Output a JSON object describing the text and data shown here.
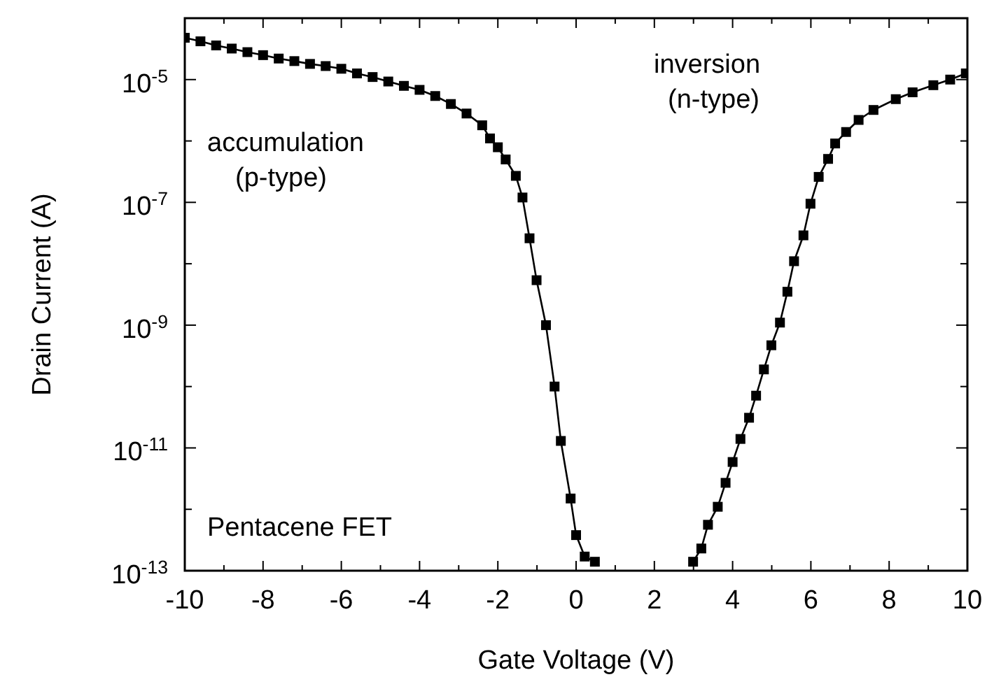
{
  "chart_data": {
    "type": "line",
    "xlabel": "Gate Voltage (V)",
    "ylabel": "Drain Current (A)",
    "annotations": [
      "accumulation\n(p-type)",
      "inversion\n(n-type)",
      "Pentacene FET"
    ],
    "log": "y",
    "marker": "square",
    "line_style": "solid",
    "grid": false,
    "xlim": [
      -10,
      10
    ],
    "ylim": [
      1e-13,
      0.0001
    ],
    "xticks": [
      -10,
      {
        "value": -9,
        "label": null
      },
      -8,
      {
        "value": -7,
        "label": null
      },
      -6,
      {
        "value": -5,
        "label": null
      },
      -4,
      {
        "value": -3,
        "label": null
      },
      -2,
      {
        "value": -1,
        "label": null
      },
      0,
      {
        "value": 1,
        "label": null
      },
      2,
      {
        "value": 3,
        "label": null
      },
      4,
      {
        "value": 5,
        "label": null
      },
      6,
      {
        "value": 7,
        "label": null
      },
      8,
      {
        "value": 9,
        "label": null
      },
      10
    ],
    "yticks": [
      {
        "value": 1e-13,
        "label": "10$^{-13}$"
      },
      {
        "value": 1e-12,
        "label": null
      },
      {
        "value": 1e-11,
        "label": "10$^{-11}$"
      },
      {
        "value": 1e-10,
        "label": null
      },
      {
        "value": 1e-09,
        "label": "10$^{-9}$"
      },
      {
        "value": 1e-08,
        "label": null
      },
      {
        "value": 1e-07,
        "label": "10$^{-7}$"
      },
      {
        "value": 1e-06,
        "label": null
      },
      {
        "value": 1e-05,
        "label": "10$^{-5}$"
      }
    ],
    "series": [
      {
        "color": "#000000",
        "x": [
          -10,
          -9.6,
          -9.2,
          -8.8,
          -8.4,
          -8,
          -7.6,
          -7.2,
          -6.8,
          -6.4,
          -6,
          -5.6,
          -5.2,
          -4.8,
          -4.4,
          -4,
          -3.6,
          -3.2,
          -2.8,
          -2.4,
          -2.2,
          -2.0,
          -1.8,
          -1.54,
          -1.37,
          -1.19,
          -1.01,
          -0.77,
          -0.55,
          -0.39,
          -0.14,
          0.0,
          0.22,
          0.48,
          1.5,
          2.99,
          3.2,
          3.37,
          3.62,
          3.82,
          4.0,
          4.2,
          4.42,
          4.6,
          4.8,
          4.99,
          5.21,
          5.4,
          5.57,
          5.81,
          5.99,
          6.2,
          6.44,
          6.62,
          6.9,
          7.22,
          7.6,
          8.17,
          8.6,
          9.13,
          9.56,
          9.96
        ],
        "values": [
          4.8e-05,
          4.2e-05,
          3.6e-05,
          3.2e-05,
          2.8e-05,
          2.5e-05,
          2.2e-05,
          2e-05,
          1.8e-05,
          1.66e-05,
          1.5e-05,
          1.26e-05,
          1.1e-05,
          9.3e-06,
          7.9e-06,
          6.8e-06,
          5.4e-06,
          4e-06,
          2.8e-06,
          1.8e-06,
          1.1e-06,
          7.9e-07,
          5e-07,
          2.7e-07,
          1.2e-07,
          2.6e-08,
          5.4e-09,
          1e-09,
          1e-10,
          1.3e-11,
          1.5e-12,
          3.8e-13,
          1.7e-13,
          1.4e-13,
          null,
          1.4e-13,
          2.3e-13,
          5.6e-13,
          1.1e-12,
          2.7e-12,
          5.9e-12,
          1.4e-11,
          3.1e-11,
          7.1e-11,
          1.9e-10,
          4.7e-10,
          1.1e-09,
          3.5e-09,
          1.1e-08,
          2.9e-08,
          9.5e-08,
          2.6e-07,
          5.1e-07,
          9.1e-07,
          1.4e-06,
          2.2e-06,
          3.2e-06,
          4.8e-06,
          6.2e-06,
          8.1e-06,
          1e-05,
          1.26e-05
        ]
      }
    ]
  }
}
